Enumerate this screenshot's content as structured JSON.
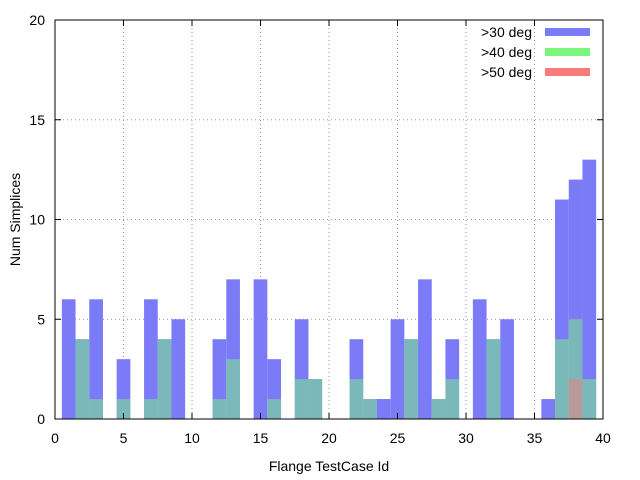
{
  "chart_data": {
    "type": "bar",
    "xlabel": "Flange TestCase Id",
    "ylabel": "Num Simplices",
    "xlim": [
      0,
      40
    ],
    "ylim": [
      0,
      20
    ],
    "xticks": [
      0,
      5,
      10,
      15,
      20,
      25,
      30,
      35,
      40
    ],
    "yticks": [
      0,
      5,
      10,
      15,
      20
    ],
    "grid": true,
    "legend_position": "top-right",
    "x": [
      1,
      2,
      3,
      4,
      5,
      6,
      7,
      8,
      9,
      10,
      11,
      12,
      13,
      14,
      15,
      16,
      17,
      18,
      19,
      20,
      21,
      22,
      23,
      24,
      25,
      26,
      27,
      28,
      29,
      30,
      31,
      32,
      33,
      34,
      35,
      36,
      37,
      38,
      39
    ],
    "series": [
      {
        "name": ">30 deg",
        "color": "#7b7bf7",
        "values": [
          6,
          4,
          6,
          0,
          3,
          0,
          6,
          4,
          5,
          0,
          0,
          4,
          7,
          0,
          7,
          3,
          0,
          5,
          2,
          0,
          0,
          4,
          1,
          1,
          5,
          4,
          7,
          1,
          4,
          0,
          6,
          4,
          5,
          0,
          0,
          1,
          11,
          12,
          13
        ]
      },
      {
        "name": ">40 deg",
        "color": "#7bf57b",
        "values": [
          0,
          4,
          1,
          0,
          1,
          0,
          1,
          4,
          0,
          0,
          0,
          1,
          3,
          0,
          0,
          1,
          0,
          2,
          2,
          0,
          0,
          2,
          1,
          0,
          0,
          4,
          0,
          1,
          2,
          0,
          0,
          4,
          0,
          0,
          0,
          0,
          4,
          5,
          2
        ]
      },
      {
        "name": ">50 deg",
        "color": "#f77b7b",
        "values": [
          0,
          0,
          0,
          0,
          0,
          0,
          0,
          0,
          0,
          0,
          0,
          0,
          0,
          0,
          0,
          0,
          0,
          0,
          0,
          0,
          0,
          0,
          0,
          0,
          0,
          0,
          0,
          0,
          0,
          0,
          0,
          0,
          0,
          0,
          0,
          0,
          0,
          2,
          0
        ]
      }
    ]
  }
}
